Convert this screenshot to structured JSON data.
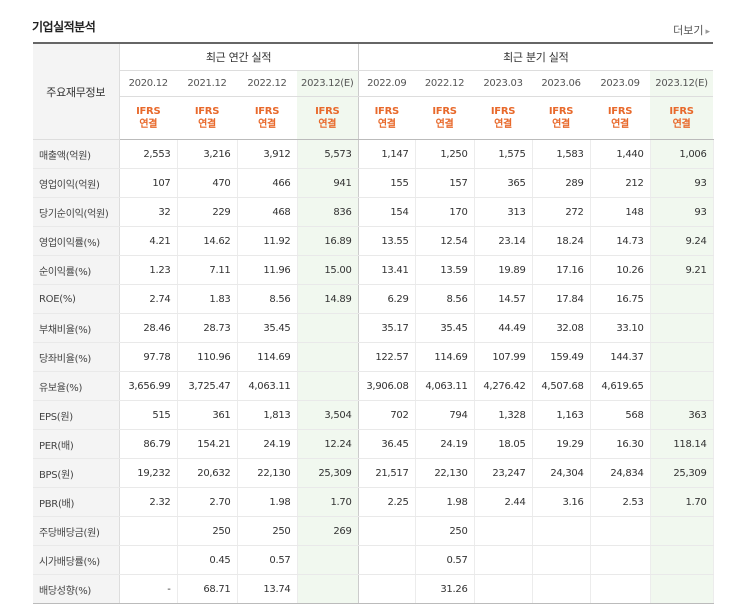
{
  "title": "기업실적분석",
  "more_label": "더보기",
  "header": {
    "row_label": "주요재무정보",
    "annual_label": "최근 연간 실적",
    "quarter_label": "최근 분기 실적",
    "periods": [
      "2020.12",
      "2021.12",
      "2022.12",
      "2023.12(E)",
      "2022.09",
      "2022.12",
      "2023.03",
      "2023.06",
      "2023.09",
      "2023.12(E)"
    ],
    "ifrs_top": "IFRS",
    "ifrs_bottom": "연결"
  },
  "rows": [
    {
      "label": "매출액(억원)",
      "values": [
        "2,553",
        "3,216",
        "3,912",
        "5,573",
        "1,147",
        "1,250",
        "1,575",
        "1,583",
        "1,440",
        "1,006"
      ]
    },
    {
      "label": "영업이익(억원)",
      "values": [
        "107",
        "470",
        "466",
        "941",
        "155",
        "157",
        "365",
        "289",
        "212",
        "93"
      ]
    },
    {
      "label": "당기순이익(억원)",
      "values": [
        "32",
        "229",
        "468",
        "836",
        "154",
        "170",
        "313",
        "272",
        "148",
        "93"
      ]
    },
    {
      "label": "영업이익률(%)",
      "values": [
        "4.21",
        "14.62",
        "11.92",
        "16.89",
        "13.55",
        "12.54",
        "23.14",
        "18.24",
        "14.73",
        "9.24"
      ]
    },
    {
      "label": "순이익률(%)",
      "values": [
        "1.23",
        "7.11",
        "11.96",
        "15.00",
        "13.41",
        "13.59",
        "19.89",
        "17.16",
        "10.26",
        "9.21"
      ]
    },
    {
      "label": "ROE(%)",
      "values": [
        "2.74",
        "1.83",
        "8.56",
        "14.89",
        "6.29",
        "8.56",
        "14.57",
        "17.84",
        "16.75",
        ""
      ]
    },
    {
      "label": "부채비율(%)",
      "values": [
        "28.46",
        "28.73",
        "35.45",
        "",
        "35.17",
        "35.45",
        "44.49",
        "32.08",
        "33.10",
        ""
      ]
    },
    {
      "label": "당좌비율(%)",
      "values": [
        "97.78",
        "110.96",
        "114.69",
        "",
        "122.57",
        "114.69",
        "107.99",
        "159.49",
        "144.37",
        ""
      ]
    },
    {
      "label": "유보율(%)",
      "values": [
        "3,656.99",
        "3,725.47",
        "4,063.11",
        "",
        "3,906.08",
        "4,063.11",
        "4,276.42",
        "4,507.68",
        "4,619.65",
        ""
      ]
    },
    {
      "label": "EPS(원)",
      "values": [
        "515",
        "361",
        "1,813",
        "3,504",
        "702",
        "794",
        "1,328",
        "1,163",
        "568",
        "363"
      ]
    },
    {
      "label": "PER(배)",
      "values": [
        "86.79",
        "154.21",
        "24.19",
        "12.24",
        "36.45",
        "24.19",
        "18.05",
        "19.29",
        "16.30",
        "118.14"
      ]
    },
    {
      "label": "BPS(원)",
      "values": [
        "19,232",
        "20,632",
        "22,130",
        "25,309",
        "21,517",
        "22,130",
        "23,247",
        "24,304",
        "24,834",
        "25,309"
      ]
    },
    {
      "label": "PBR(배)",
      "values": [
        "2.32",
        "2.70",
        "1.98",
        "1.70",
        "2.25",
        "1.98",
        "2.44",
        "3.16",
        "2.53",
        "1.70"
      ]
    },
    {
      "label": "주당배당금(원)",
      "values": [
        "",
        "250",
        "250",
        "269",
        "",
        "250",
        "",
        "",
        "",
        ""
      ]
    },
    {
      "label": "시가배당률(%)",
      "values": [
        "",
        "0.45",
        "0.57",
        "",
        "",
        "0.57",
        "",
        "",
        "",
        ""
      ]
    },
    {
      "label": "배당성향(%)",
      "values": [
        "-",
        "68.71",
        "13.74",
        "",
        "",
        "31.26",
        "",
        "",
        "",
        ""
      ]
    }
  ]
}
